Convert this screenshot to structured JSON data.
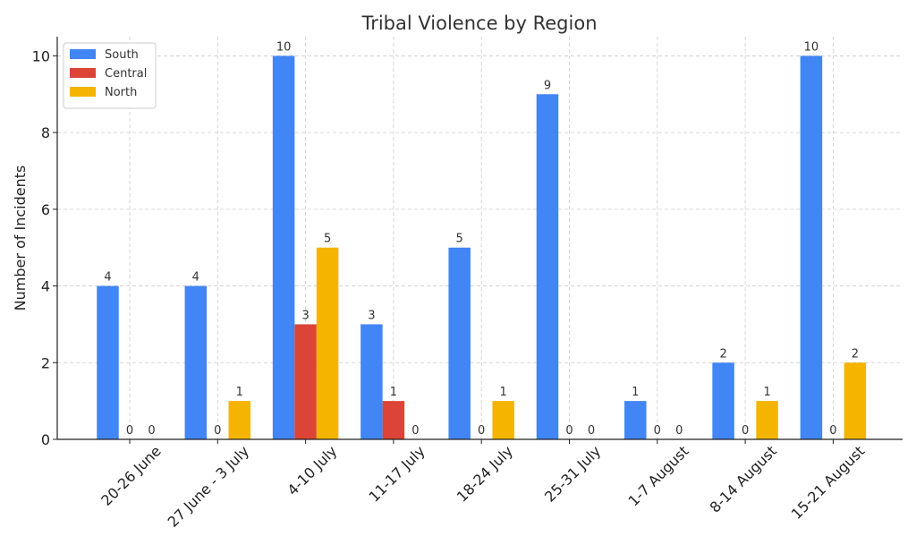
{
  "chart_data": {
    "type": "bar",
    "title": "Tribal Violence by Region",
    "xlabel": "",
    "ylabel": "Number of Incidents",
    "categories": [
      "20-26 June",
      "27 June - 3 July",
      "4-10 July",
      "11-17 July",
      "18-24 July",
      "25-31 July",
      "1-7 August",
      "8-14 August",
      "15-21 August"
    ],
    "series": [
      {
        "name": "South",
        "color": "#4285F4",
        "values": [
          4,
          4,
          10,
          3,
          5,
          9,
          1,
          2,
          10
        ]
      },
      {
        "name": "Central",
        "color": "#DB4437",
        "values": [
          0,
          0,
          3,
          1,
          0,
          0,
          0,
          0,
          0
        ]
      },
      {
        "name": "North",
        "color": "#F4B400",
        "values": [
          0,
          1,
          5,
          0,
          1,
          0,
          0,
          1,
          2
        ]
      }
    ],
    "ylim": [
      0,
      10.5
    ],
    "yticks": [
      0,
      2,
      4,
      6,
      8,
      10
    ],
    "grid": true,
    "legend": "top-left",
    "data_labels": true,
    "xtick_rotation": -45
  }
}
